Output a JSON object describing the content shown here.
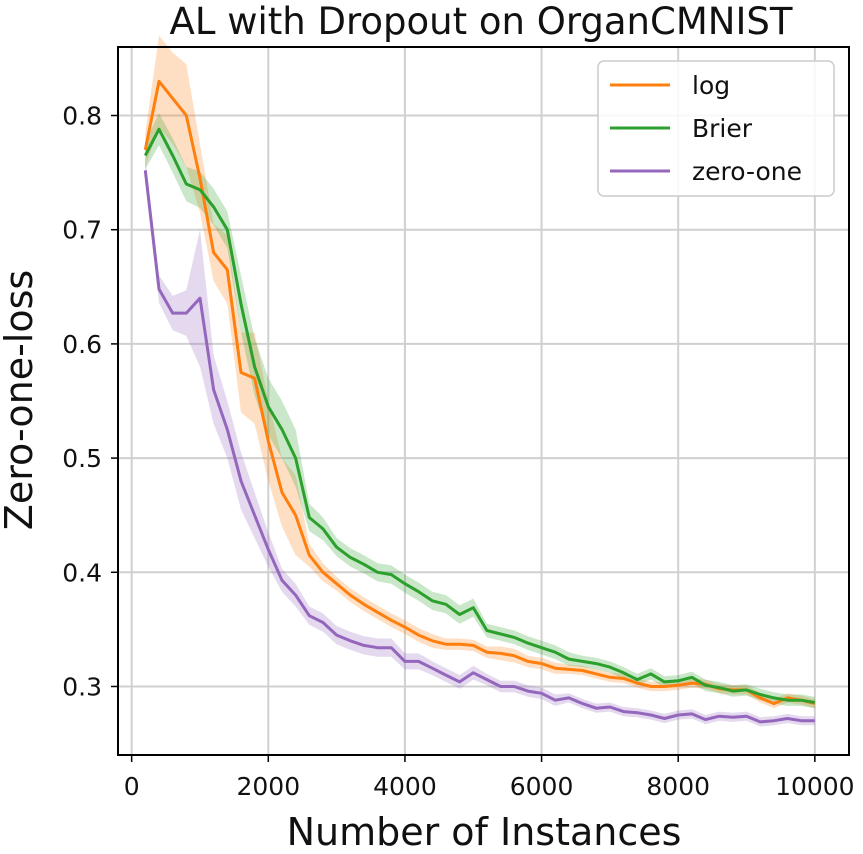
{
  "chart_data": {
    "type": "line",
    "title": "AL with Dropout on OrganCMNIST",
    "xlabel": "Number of Instances",
    "ylabel": "Zero-one-loss",
    "xlim": [
      -200,
      10500
    ],
    "ylim": [
      0.24,
      0.86
    ],
    "xticks": [
      0,
      2000,
      4000,
      6000,
      8000,
      10000
    ],
    "xtick_labels": [
      "0",
      "2000",
      "4000",
      "6000",
      "8000",
      "10000"
    ],
    "yticks": [
      0.3,
      0.4,
      0.5,
      0.6,
      0.7,
      0.8
    ],
    "ytick_labels": [
      "0.3",
      "0.4",
      "0.5",
      "0.6",
      "0.7",
      "0.8"
    ],
    "grid": true,
    "legend_position": "top-right",
    "series": [
      {
        "name": "log",
        "color": "#ff7f0e",
        "x": [
          200,
          400,
          600,
          800,
          1000,
          1200,
          1400,
          1600,
          1800,
          2000,
          2200,
          2400,
          2600,
          2800,
          3000,
          3200,
          3400,
          3600,
          3800,
          4000,
          4200,
          4400,
          4600,
          4800,
          5000,
          5200,
          5400,
          5600,
          5800,
          6000,
          6200,
          6400,
          6600,
          6800,
          7000,
          7200,
          7400,
          7600,
          7800,
          8000,
          8200,
          8400,
          8600,
          8800,
          9000,
          9200,
          9400,
          9600,
          9800,
          10000
        ],
        "values": [
          0.77,
          0.83,
          0.815,
          0.8,
          0.745,
          0.68,
          0.665,
          0.575,
          0.57,
          0.515,
          0.47,
          0.45,
          0.415,
          0.4,
          0.39,
          0.38,
          0.372,
          0.365,
          0.358,
          0.352,
          0.345,
          0.34,
          0.337,
          0.337,
          0.336,
          0.33,
          0.329,
          0.327,
          0.322,
          0.32,
          0.316,
          0.315,
          0.314,
          0.311,
          0.308,
          0.307,
          0.303,
          0.3,
          0.3,
          0.301,
          0.303,
          0.302,
          0.298,
          0.297,
          0.297,
          0.29,
          0.285,
          0.29,
          0.288,
          0.285
        ],
        "band": [
          0.015,
          0.04,
          0.04,
          0.045,
          0.03,
          0.025,
          0.03,
          0.035,
          0.04,
          0.035,
          0.03,
          0.035,
          0.01,
          0.008,
          0.006,
          0.006,
          0.006,
          0.006,
          0.006,
          0.006,
          0.006,
          0.006,
          0.005,
          0.005,
          0.005,
          0.005,
          0.006,
          0.006,
          0.005,
          0.005,
          0.005,
          0.004,
          0.004,
          0.004,
          0.004,
          0.004,
          0.004,
          0.004,
          0.004,
          0.004,
          0.004,
          0.004,
          0.004,
          0.004,
          0.004,
          0.004,
          0.004,
          0.004,
          0.004,
          0.004
        ]
      },
      {
        "name": "Brier",
        "color": "#2ca02c",
        "x": [
          200,
          400,
          600,
          800,
          1000,
          1200,
          1400,
          1600,
          1800,
          2000,
          2200,
          2400,
          2600,
          2800,
          3000,
          3200,
          3400,
          3600,
          3800,
          4000,
          4200,
          4400,
          4600,
          4800,
          5000,
          5200,
          5400,
          5600,
          5800,
          6000,
          6200,
          6400,
          6600,
          6800,
          7000,
          7200,
          7400,
          7600,
          7800,
          8000,
          8200,
          8400,
          8600,
          8800,
          9000,
          9200,
          9400,
          9600,
          9800,
          10000
        ],
        "values": [
          0.765,
          0.788,
          0.765,
          0.74,
          0.735,
          0.72,
          0.7,
          0.635,
          0.58,
          0.545,
          0.525,
          0.5,
          0.448,
          0.438,
          0.422,
          0.413,
          0.407,
          0.4,
          0.398,
          0.39,
          0.383,
          0.375,
          0.372,
          0.363,
          0.369,
          0.349,
          0.346,
          0.343,
          0.338,
          0.334,
          0.33,
          0.324,
          0.322,
          0.32,
          0.317,
          0.312,
          0.306,
          0.311,
          0.304,
          0.305,
          0.308,
          0.301,
          0.299,
          0.296,
          0.297,
          0.293,
          0.29,
          0.288,
          0.288,
          0.286
        ],
        "band": [
          0.012,
          0.014,
          0.015,
          0.015,
          0.016,
          0.016,
          0.016,
          0.025,
          0.025,
          0.025,
          0.025,
          0.025,
          0.012,
          0.01,
          0.008,
          0.008,
          0.008,
          0.008,
          0.008,
          0.008,
          0.008,
          0.008,
          0.008,
          0.008,
          0.008,
          0.006,
          0.006,
          0.006,
          0.006,
          0.006,
          0.006,
          0.006,
          0.005,
          0.005,
          0.005,
          0.005,
          0.005,
          0.005,
          0.005,
          0.005,
          0.005,
          0.005,
          0.005,
          0.005,
          0.005,
          0.005,
          0.005,
          0.005,
          0.005,
          0.005
        ]
      },
      {
        "name": "zero-one",
        "color": "#9467bd",
        "x": [
          200,
          400,
          600,
          800,
          1000,
          1200,
          1400,
          1600,
          1800,
          2000,
          2200,
          2400,
          2600,
          2800,
          3000,
          3200,
          3400,
          3600,
          3800,
          4000,
          4200,
          4400,
          4600,
          4800,
          5000,
          5200,
          5400,
          5600,
          5800,
          6000,
          6200,
          6400,
          6600,
          6800,
          7000,
          7200,
          7400,
          7600,
          7800,
          8000,
          8200,
          8400,
          8600,
          8800,
          9000,
          9200,
          9400,
          9600,
          9800,
          10000
        ],
        "values": [
          0.752,
          0.648,
          0.627,
          0.627,
          0.64,
          0.56,
          0.525,
          0.48,
          0.45,
          0.42,
          0.393,
          0.38,
          0.362,
          0.356,
          0.345,
          0.34,
          0.336,
          0.334,
          0.334,
          0.322,
          0.322,
          0.316,
          0.31,
          0.304,
          0.312,
          0.306,
          0.3,
          0.3,
          0.296,
          0.294,
          0.288,
          0.29,
          0.285,
          0.281,
          0.282,
          0.278,
          0.277,
          0.275,
          0.272,
          0.275,
          0.276,
          0.271,
          0.274,
          0.273,
          0.274,
          0.269,
          0.27,
          0.272,
          0.27,
          0.27
        ],
        "band": [
          0.01,
          0.012,
          0.015,
          0.02,
          0.06,
          0.03,
          0.025,
          0.025,
          0.02,
          0.015,
          0.01,
          0.01,
          0.008,
          0.008,
          0.008,
          0.008,
          0.008,
          0.008,
          0.008,
          0.007,
          0.007,
          0.006,
          0.006,
          0.006,
          0.006,
          0.005,
          0.005,
          0.005,
          0.005,
          0.005,
          0.005,
          0.004,
          0.004,
          0.004,
          0.004,
          0.004,
          0.004,
          0.004,
          0.004,
          0.004,
          0.004,
          0.004,
          0.004,
          0.004,
          0.004,
          0.004,
          0.004,
          0.004,
          0.004,
          0.004
        ]
      }
    ]
  }
}
